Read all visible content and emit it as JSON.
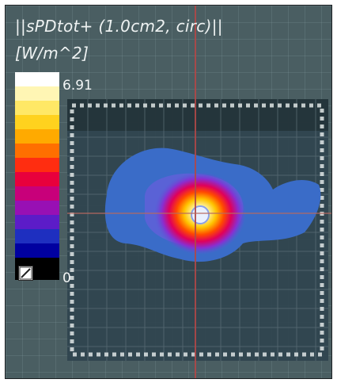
{
  "viewer": {
    "title_line_1": "||sPDtot+ (1.0cm2, circ)||",
    "title_line_2": "[W/m^2]",
    "colorbar": {
      "max_label": "6.91",
      "min_label": "0",
      "max_value": 6.91,
      "min_value": 0,
      "stops": [
        "#ffffff",
        "#fff6b4",
        "#ffe866",
        "#ffd21e",
        "#ffaa00",
        "#ff6f00",
        "#ff2d10",
        "#e8003c",
        "#c8007a",
        "#9810b4",
        "#5c1cc8",
        "#1e2fc0",
        "#0000a0",
        "#000000"
      ]
    },
    "colors": {
      "background": "#4a5e62",
      "crosshair": "#b04848",
      "field_low": "#3a6cc8",
      "field_mid": "#7a4cd8",
      "field_high": "#ffffff"
    },
    "icons": {
      "colorbar_toggle": "slash-box-icon"
    }
  }
}
